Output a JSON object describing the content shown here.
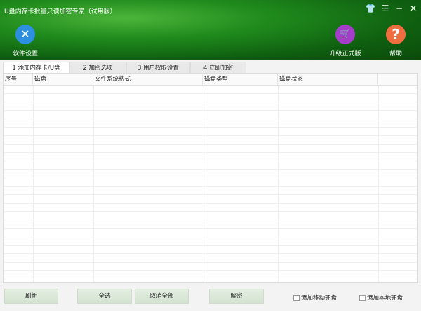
{
  "window": {
    "title": "U盘内存卡批量只读加密专家（试用版）",
    "controls": {
      "skin": "👕",
      "menu": "☰",
      "minimize": "−",
      "close": "✕"
    }
  },
  "toolbar": {
    "settings": {
      "label": "软件设置",
      "icon": "✕",
      "color": "#2d8fe0"
    },
    "upgrade": {
      "label": "升级正式版",
      "icon": "🛒",
      "color": "#a43dc9"
    },
    "help": {
      "label": "帮助",
      "icon": "?",
      "color": "#ef6d3e"
    }
  },
  "tabs": [
    {
      "label": "1 添加内存卡/U盘",
      "active": true
    },
    {
      "label": "2 加密选项"
    },
    {
      "label": "3 用户权限设置"
    },
    {
      "label": "4 立即加密"
    }
  ],
  "table": {
    "columns": [
      "序号",
      "磁盘",
      "文件系统格式",
      "磁盘类型",
      "磁盘状态",
      ""
    ],
    "rows": []
  },
  "buttons": {
    "refresh": "刷新",
    "select_all": "全选",
    "deselect_all": "取消全部",
    "decrypt": "解密"
  },
  "checkboxes": {
    "removable": {
      "label": "添加移动硬盘",
      "checked": false
    },
    "local": {
      "label": "添加本地硬盘",
      "checked": false
    }
  }
}
